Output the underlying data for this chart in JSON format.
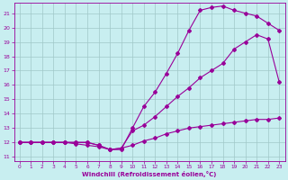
{
  "xlabel": "Windchill (Refroidissement éolien,°C)",
  "xlim": [
    -0.5,
    23.5
  ],
  "ylim": [
    10.7,
    21.7
  ],
  "yticks": [
    11,
    12,
    13,
    14,
    15,
    16,
    17,
    18,
    19,
    20,
    21
  ],
  "xticks": [
    0,
    1,
    2,
    3,
    4,
    5,
    6,
    7,
    8,
    9,
    10,
    11,
    12,
    13,
    14,
    15,
    16,
    17,
    18,
    19,
    20,
    21,
    22,
    23
  ],
  "bg_color": "#c8eef0",
  "line_color": "#990099",
  "grid_color": "#a0c8c8",
  "line1_x": [
    0,
    1,
    2,
    3,
    4,
    5,
    6,
    7,
    8,
    9,
    10,
    11,
    12,
    13,
    14,
    15,
    16,
    17,
    18,
    19,
    20,
    21,
    22,
    23
  ],
  "line1_y": [
    12,
    12,
    12,
    12,
    12,
    12,
    12,
    11.8,
    11.5,
    11.6,
    11.8,
    12.1,
    12.3,
    12.6,
    12.8,
    13.0,
    13.1,
    13.2,
    13.3,
    13.4,
    13.5,
    13.6,
    13.6,
    13.7
  ],
  "line2_x": [
    0,
    1,
    2,
    3,
    4,
    5,
    6,
    7,
    8,
    9,
    10,
    11,
    12,
    13,
    14,
    15,
    16,
    17,
    18,
    19,
    20,
    21,
    22,
    23
  ],
  "line2_y": [
    12,
    12,
    12,
    12,
    12,
    11.9,
    11.8,
    11.7,
    11.5,
    11.6,
    12.8,
    13.2,
    13.8,
    14.5,
    15.2,
    15.8,
    16.5,
    17.0,
    17.5,
    18.5,
    19.0,
    19.5,
    19.2,
    16.2
  ],
  "line3_x": [
    0,
    1,
    2,
    3,
    4,
    5,
    6,
    7,
    8,
    9,
    10,
    11,
    12,
    13,
    14,
    15,
    16,
    17,
    18,
    19,
    20,
    21,
    22,
    23
  ],
  "line3_y": [
    12,
    12,
    12,
    12,
    12,
    12,
    12,
    11.8,
    11.5,
    11.5,
    13.0,
    14.5,
    15.5,
    16.8,
    18.2,
    19.8,
    21.2,
    21.4,
    21.5,
    21.2,
    21.0,
    20.8,
    20.3,
    19.8
  ],
  "marker": "D",
  "marker_size": 2.0,
  "linewidth": 0.8
}
